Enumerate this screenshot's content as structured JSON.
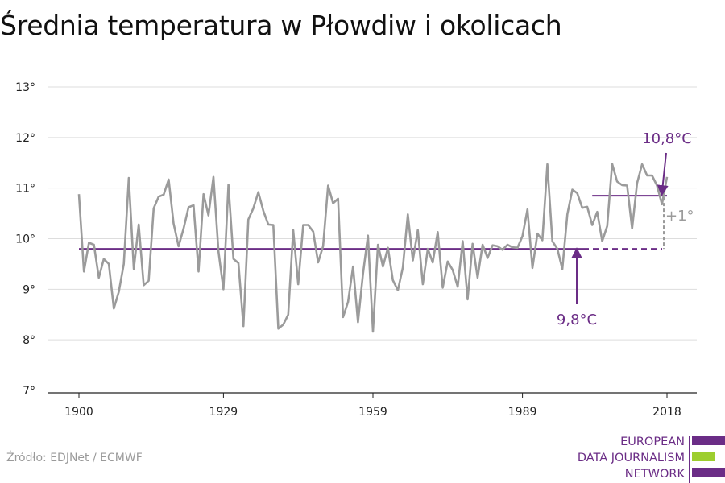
{
  "chart_data": {
    "type": "line",
    "title": "Średnia temperatura w Płowdiw i okolicach",
    "xlabel": "",
    "ylabel": "",
    "xlim": [
      1900,
      2018
    ],
    "ylim": [
      7,
      13
    ],
    "x_ticks": [
      1900,
      1929,
      1959,
      1989,
      2018
    ],
    "y_ticks": [
      7,
      8,
      9,
      10,
      11,
      12,
      13
    ],
    "y_tick_labels": [
      "7°",
      "8°",
      "9°",
      "10°",
      "11°",
      "12°",
      "13°"
    ],
    "grid": "horizontal",
    "colors": {
      "series": "#9b9b9b",
      "accent": "#6b2d86",
      "logo_green": "#9dce2e"
    },
    "series": [
      {
        "x": [
          1900,
          1901,
          1902,
          1903,
          1904,
          1905,
          1906,
          1907,
          1908,
          1909,
          1910,
          1911,
          1912,
          1913,
          1914,
          1915,
          1916,
          1917,
          1918,
          1919,
          1920,
          1921,
          1922,
          1923,
          1924,
          1925,
          1926,
          1927,
          1928,
          1929,
          1930,
          1931,
          1932,
          1933,
          1934,
          1935,
          1936,
          1937,
          1938,
          1939,
          1940,
          1941,
          1942,
          1943,
          1944,
          1945,
          1946,
          1947,
          1948,
          1949,
          1950,
          1951,
          1952,
          1953,
          1954,
          1955,
          1956,
          1957,
          1958,
          1959,
          1960,
          1961,
          1962,
          1963,
          1964,
          1965,
          1966,
          1967,
          1968,
          1969,
          1970,
          1971,
          1972,
          1973,
          1974,
          1975,
          1976,
          1977,
          1978,
          1979,
          1980,
          1981,
          1982,
          1983,
          1984,
          1985,
          1986,
          1987,
          1988,
          1989,
          1990,
          1991,
          1992,
          1993,
          1994,
          1995,
          1996,
          1997,
          1998,
          1999,
          2000,
          2001,
          2002,
          2003,
          2004,
          2005,
          2006,
          2007,
          2008,
          2009,
          2010,
          2011,
          2012,
          2013,
          2014,
          2015,
          2016,
          2017,
          2018
        ],
        "values": [
          10.88,
          9.35,
          9.92,
          9.88,
          9.23,
          9.6,
          9.5,
          8.62,
          8.95,
          9.5,
          11.2,
          9.4,
          10.28,
          9.08,
          9.17,
          10.6,
          10.83,
          10.87,
          11.17,
          10.3,
          9.85,
          10.2,
          10.62,
          10.66,
          9.35,
          10.88,
          10.46,
          11.22,
          9.75,
          9.0,
          11.07,
          9.6,
          9.52,
          8.27,
          10.38,
          10.6,
          10.92,
          10.55,
          10.28,
          10.27,
          8.22,
          8.3,
          8.5,
          10.17,
          9.1,
          10.27,
          10.27,
          10.14,
          9.53,
          9.85,
          11.05,
          10.7,
          10.79,
          8.45,
          8.75,
          9.45,
          8.35,
          9.3,
          10.06,
          8.16,
          9.88,
          9.45,
          9.82,
          9.18,
          8.98,
          9.43,
          10.48,
          9.57,
          10.17,
          9.1,
          9.8,
          9.53,
          10.13,
          9.03,
          9.55,
          9.38,
          9.05,
          9.95,
          8.8,
          9.9,
          9.23,
          9.88,
          9.62,
          9.87,
          9.85,
          9.78,
          9.88,
          9.83,
          9.82,
          10.05,
          10.58,
          9.42,
          10.1,
          9.97,
          11.47,
          9.95,
          9.8,
          9.4,
          10.48,
          10.97,
          10.9,
          10.61,
          10.63,
          10.27,
          10.53,
          9.95,
          10.25,
          11.48,
          11.13,
          11.06,
          11.05,
          10.2,
          11.1,
          11.47,
          11.25,
          11.25,
          11.05,
          10.68,
          11.22
        ]
      }
    ],
    "reference_lines": [
      {
        "label": "9,8°C",
        "value": 9.8,
        "x_start": 1900,
        "x_end": 2018
      },
      {
        "label": "10,8°C",
        "value": 10.85,
        "x_start": 2003,
        "x_end": 2018
      }
    ],
    "difference_label": "+1°"
  },
  "footer": {
    "source": "Źródło: EDJNet / ECMWF",
    "logo_lines": [
      "EUROPEAN",
      "DATA JOURNALISM",
      "NETWORK"
    ]
  }
}
